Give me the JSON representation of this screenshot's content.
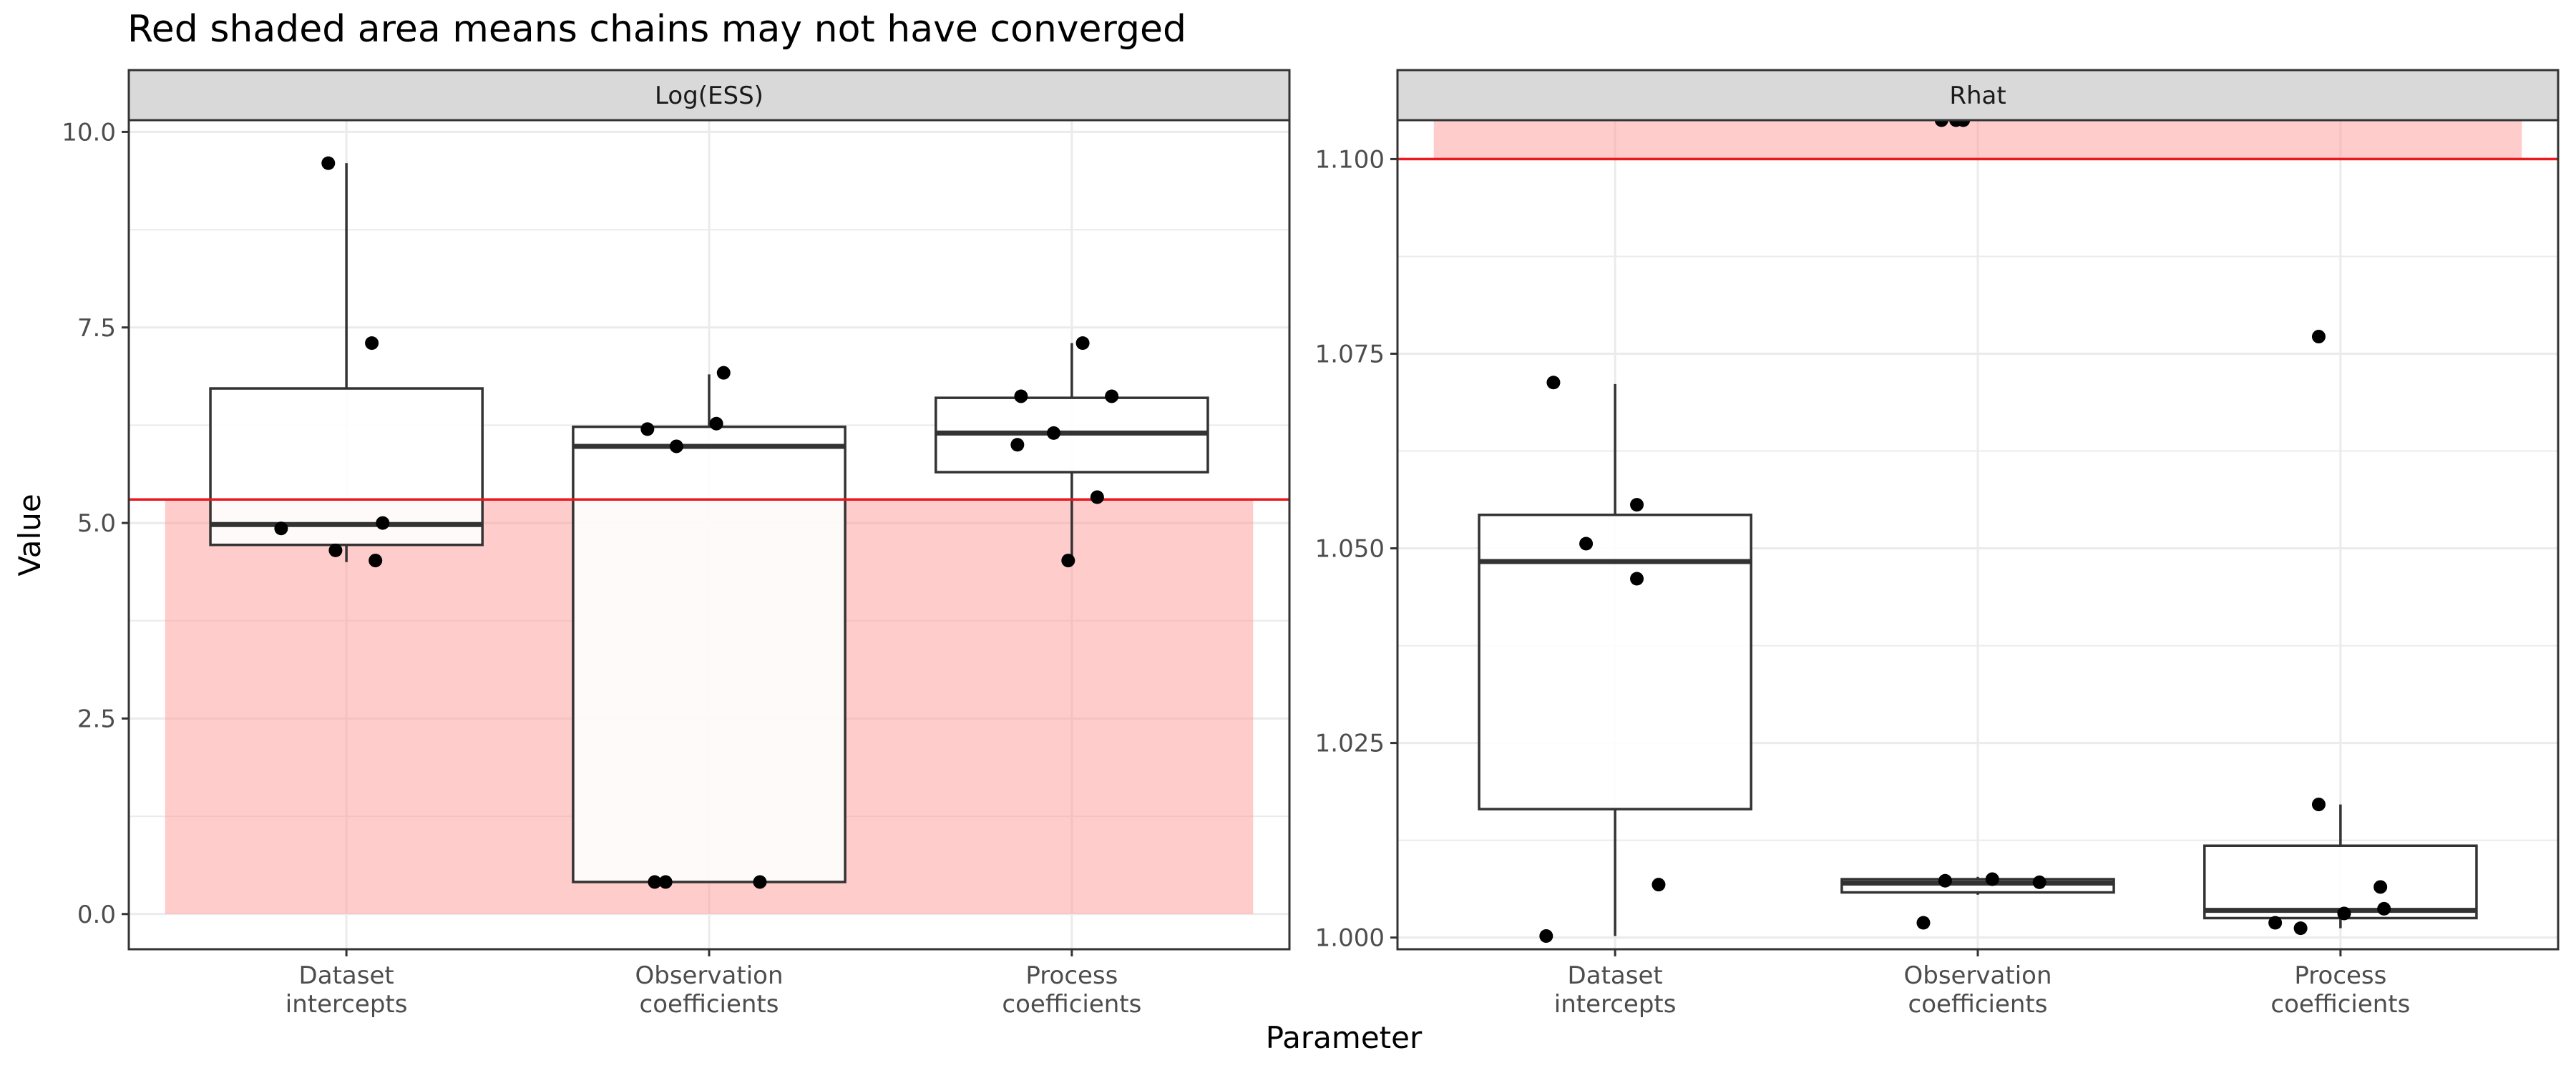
{
  "title": "Red shaded area means chains may not have converged",
  "xlabel": "Parameter",
  "ylabel": "Value",
  "colors": {
    "shade": "#ff9999",
    "threshold_line": "#e8191f",
    "box": "#333333",
    "point": "#000000",
    "strip_bg": "#d9d9d9",
    "grid": "#ebebeb"
  },
  "chart_data": [
    {
      "type": "box",
      "panel": "Log(ESS)",
      "categories": [
        "Dataset\nintercepts",
        "Observation\ncoefficients",
        "Process\ncoefficients"
      ],
      "ylim": [
        -0.45,
        10.15
      ],
      "yticks": [
        0.0,
        2.5,
        5.0,
        7.5,
        10.0
      ],
      "ytick_labels": [
        "0.0",
        "2.5",
        "5.0",
        "7.5",
        "10.0"
      ],
      "threshold": 5.3,
      "shaded": "below",
      "shade_range": [
        0.0,
        5.3
      ],
      "grid": true,
      "boxes": [
        {
          "category": "Dataset\nintercepts",
          "lower_whisker": 4.5,
          "q1": 4.72,
          "median": 4.98,
          "q3": 6.72,
          "upper_whisker": 9.6
        },
        {
          "category": "Observation\ncoefficients",
          "lower_whisker": 0.41,
          "q1": 0.41,
          "median": 5.98,
          "q3": 6.23,
          "upper_whisker": 6.9
        },
        {
          "category": "Process\ncoefficients",
          "lower_whisker": 4.5,
          "q1": 5.65,
          "median": 6.15,
          "q3": 6.6,
          "upper_whisker": 7.3
        }
      ],
      "points": [
        {
          "category": 0,
          "jitter": -0.05,
          "y": 9.6
        },
        {
          "category": 0,
          "jitter": 0.07,
          "y": 7.3
        },
        {
          "category": 0,
          "jitter": -0.18,
          "y": 4.93
        },
        {
          "category": 0,
          "jitter": 0.1,
          "y": 5.0
        },
        {
          "category": 0,
          "jitter": -0.03,
          "y": 4.65
        },
        {
          "category": 0,
          "jitter": 0.08,
          "y": 4.52
        },
        {
          "category": 1,
          "jitter": -0.17,
          "y": 6.2
        },
        {
          "category": 1,
          "jitter": 0.02,
          "y": 6.27
        },
        {
          "category": 1,
          "jitter": 0.04,
          "y": 6.92
        },
        {
          "category": 1,
          "jitter": -0.09,
          "y": 5.98
        },
        {
          "category": 1,
          "jitter": -0.15,
          "y": 0.41
        },
        {
          "category": 1,
          "jitter": -0.12,
          "y": 0.41
        },
        {
          "category": 1,
          "jitter": 0.14,
          "y": 0.41
        },
        {
          "category": 2,
          "jitter": 0.03,
          "y": 7.3
        },
        {
          "category": 2,
          "jitter": -0.14,
          "y": 6.62
        },
        {
          "category": 2,
          "jitter": 0.11,
          "y": 6.62
        },
        {
          "category": 2,
          "jitter": -0.15,
          "y": 6.0
        },
        {
          "category": 2,
          "jitter": -0.05,
          "y": 6.15
        },
        {
          "category": 2,
          "jitter": 0.07,
          "y": 5.33
        },
        {
          "category": 2,
          "jitter": -0.01,
          "y": 4.52
        }
      ]
    },
    {
      "type": "box",
      "panel": "Rhat",
      "categories": [
        "Dataset\nintercepts",
        "Observation\ncoefficients",
        "Process\ncoefficients"
      ],
      "ylim": [
        0.9985,
        1.105
      ],
      "yticks": [
        1.0,
        1.025,
        1.05,
        1.075,
        1.1
      ],
      "ytick_labels": [
        "1.000",
        "1.025",
        "1.050",
        "1.075",
        "1.100"
      ],
      "threshold": 1.1,
      "shaded": "above",
      "shade_range": [
        1.1,
        1.105
      ],
      "grid": true,
      "boxes": [
        {
          "category": "Dataset\nintercepts",
          "lower_whisker": 1.0002,
          "q1": 1.0165,
          "median": 1.0483,
          "q3": 1.0543,
          "upper_whisker": 1.0711
        },
        {
          "category": "Observation\ncoefficients",
          "lower_whisker": 1.0055,
          "q1": 1.0058,
          "median": 1.007,
          "q3": 1.0075,
          "upper_whisker": 1.0078
        },
        {
          "category": "Process\ncoefficients",
          "lower_whisker": 1.0012,
          "q1": 1.0025,
          "median": 1.0035,
          "q3": 1.0118,
          "upper_whisker": 1.0171
        }
      ],
      "points": [
        {
          "category": 0,
          "jitter": -0.19,
          "y": 1.0002
        },
        {
          "category": 0,
          "jitter": -0.17,
          "y": 1.0713
        },
        {
          "category": 0,
          "jitter": 0.06,
          "y": 1.0556
        },
        {
          "category": 0,
          "jitter": -0.08,
          "y": 1.0506
        },
        {
          "category": 0,
          "jitter": 0.06,
          "y": 1.0461
        },
        {
          "category": 0,
          "jitter": 0.12,
          "y": 1.0068
        },
        {
          "category": 1,
          "jitter": -0.1,
          "y": 1.105
        },
        {
          "category": 1,
          "jitter": -0.06,
          "y": 1.105
        },
        {
          "category": 1,
          "jitter": -0.04,
          "y": 1.105
        },
        {
          "category": 1,
          "jitter": -0.09,
          "y": 1.0073
        },
        {
          "category": 1,
          "jitter": 0.04,
          "y": 1.0075
        },
        {
          "category": 1,
          "jitter": 0.17,
          "y": 1.0071
        },
        {
          "category": 1,
          "jitter": -0.15,
          "y": 1.0019
        },
        {
          "category": 2,
          "jitter": -0.06,
          "y": 1.0772
        },
        {
          "category": 2,
          "jitter": -0.06,
          "y": 1.0171
        },
        {
          "category": 2,
          "jitter": 0.11,
          "y": 1.0065
        },
        {
          "category": 2,
          "jitter": 0.12,
          "y": 1.0037
        },
        {
          "category": 2,
          "jitter": 0.01,
          "y": 1.0031
        },
        {
          "category": 2,
          "jitter": -0.18,
          "y": 1.0019
        },
        {
          "category": 2,
          "jitter": -0.11,
          "y": 1.0012
        }
      ]
    }
  ]
}
